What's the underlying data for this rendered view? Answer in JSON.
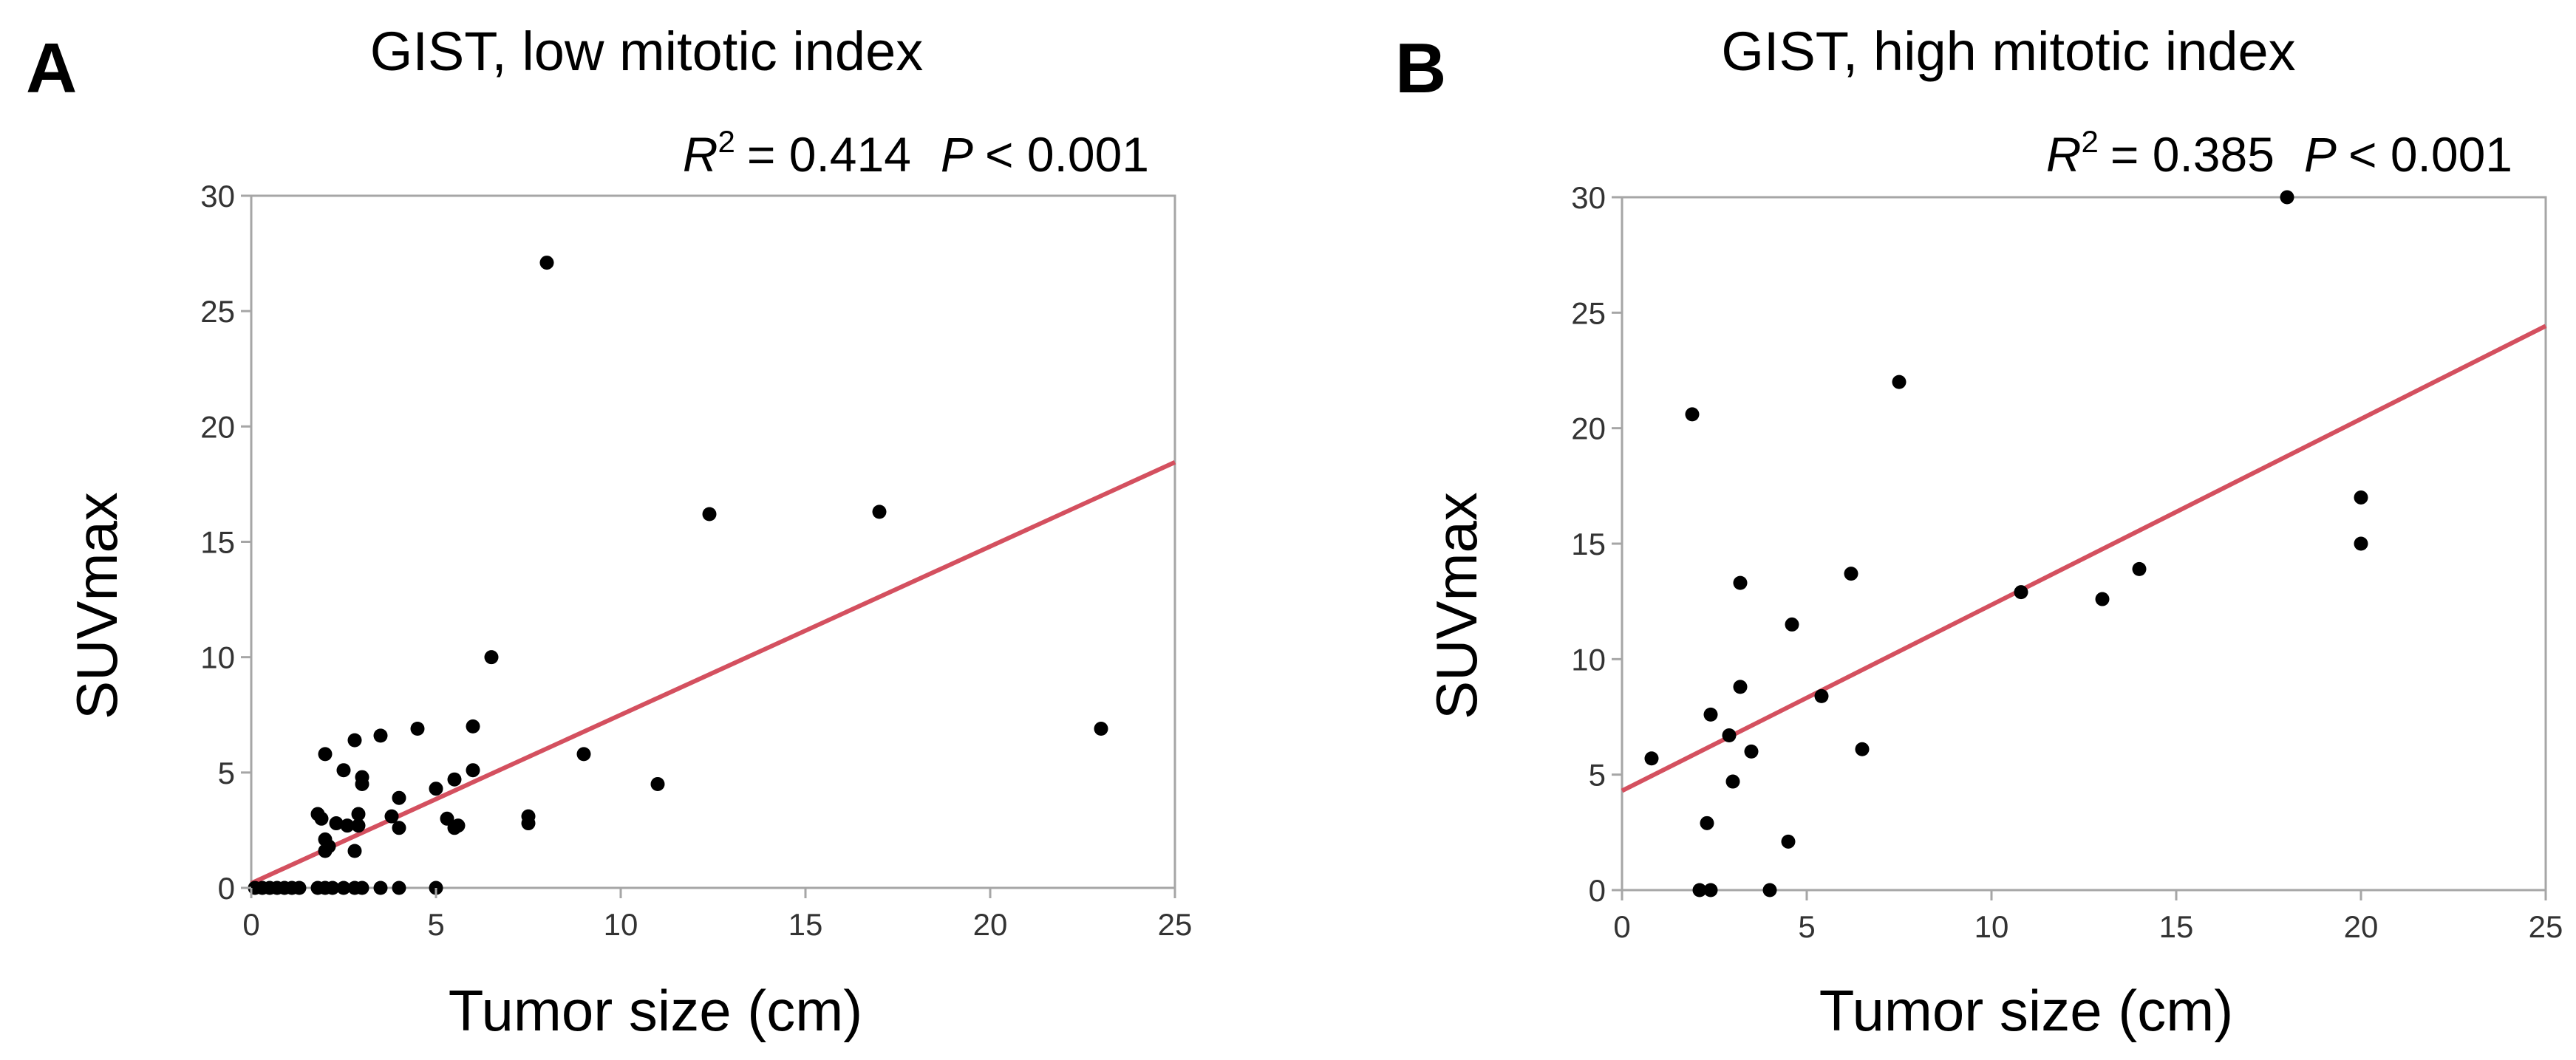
{
  "figure": {
    "colors": {
      "regression": "#d4505f",
      "points": "#000000",
      "axis": "#a6a6a6",
      "tick_text": "#333333"
    }
  },
  "chart_data": [
    {
      "type": "scatter",
      "panel_label": "A",
      "title": "GIST, low mitotic index",
      "stats": {
        "r2_symbol": "R",
        "r2_sup": "2",
        "r2_value": "= 0.414",
        "p_symbol": "P",
        "p_value": "< 0.001"
      },
      "xlabel": "Tumor size (cm)",
      "ylabel": "SUVmax",
      "xlim": [
        0,
        25
      ],
      "ylim": [
        0,
        30
      ],
      "xticks": [
        0,
        5,
        10,
        15,
        20,
        25
      ],
      "yticks": [
        0,
        5,
        10,
        15,
        20,
        25,
        30
      ],
      "grid": false,
      "regression": {
        "intercept": 0.2,
        "slope": 0.73
      },
      "points": [
        [
          8,
          27.1
        ],
        [
          12.4,
          16.2
        ],
        [
          17,
          16.3
        ],
        [
          6.5,
          10
        ],
        [
          23,
          6.9
        ],
        [
          9,
          5.8
        ],
        [
          11,
          4.5
        ],
        [
          6,
          7
        ],
        [
          4.5,
          6.9
        ],
        [
          3.5,
          6.6
        ],
        [
          2.8,
          6.4
        ],
        [
          2,
          5.8
        ],
        [
          2.5,
          5.1
        ],
        [
          3,
          4.8
        ],
        [
          3,
          4.5
        ],
        [
          6,
          5.1
        ],
        [
          5.5,
          4.7
        ],
        [
          5,
          4.3
        ],
        [
          4,
          3.9
        ],
        [
          3.8,
          3.1
        ],
        [
          5.3,
          3
        ],
        [
          5.6,
          2.7
        ],
        [
          5.5,
          2.6
        ],
        [
          7.5,
          3.1
        ],
        [
          7.5,
          2.8
        ],
        [
          1.8,
          3.2
        ],
        [
          1.9,
          3
        ],
        [
          2.3,
          2.8
        ],
        [
          2.6,
          2.7
        ],
        [
          2.9,
          3.2
        ],
        [
          2.9,
          2.7
        ],
        [
          4,
          2.6
        ],
        [
          2,
          2.1
        ],
        [
          2.1,
          1.8
        ],
        [
          2,
          1.6
        ],
        [
          2.8,
          1.6
        ],
        [
          0.1,
          0
        ],
        [
          0.3,
          0
        ],
        [
          0.5,
          0
        ],
        [
          0.7,
          0
        ],
        [
          0.9,
          0
        ],
        [
          1.1,
          0
        ],
        [
          1.3,
          0
        ],
        [
          1.8,
          0
        ],
        [
          2,
          0
        ],
        [
          2.2,
          0
        ],
        [
          2.5,
          0
        ],
        [
          2.8,
          0
        ],
        [
          3,
          0
        ],
        [
          3.5,
          0
        ],
        [
          4,
          0
        ],
        [
          5,
          0
        ]
      ]
    },
    {
      "type": "scatter",
      "panel_label": "B",
      "title": "GIST, high mitotic index",
      "stats": {
        "r2_symbol": "R",
        "r2_sup": "2",
        "r2_value": "= 0.385",
        "p_symbol": "P",
        "p_value": "< 0.001"
      },
      "xlabel": "Tumor size (cm)",
      "ylabel": "SUVmax",
      "xlim": [
        0,
        25
      ],
      "ylim": [
        0,
        30
      ],
      "xticks": [
        0,
        5,
        10,
        15,
        20,
        25
      ],
      "yticks": [
        0,
        5,
        10,
        15,
        20,
        25,
        30
      ],
      "grid": false,
      "regression": {
        "intercept": 4.3,
        "slope": 0.805
      },
      "points": [
        [
          18,
          30
        ],
        [
          7.5,
          22
        ],
        [
          1.9,
          20.6
        ],
        [
          20,
          17
        ],
        [
          20,
          15
        ],
        [
          14,
          13.9
        ],
        [
          6.2,
          13.7
        ],
        [
          3.2,
          13.3
        ],
        [
          10.8,
          12.9
        ],
        [
          13,
          12.6
        ],
        [
          4.6,
          11.5
        ],
        [
          3.2,
          8.8
        ],
        [
          5.4,
          8.4
        ],
        [
          2.4,
          7.6
        ],
        [
          2.9,
          6.7
        ],
        [
          3.5,
          6
        ],
        [
          6.5,
          6.1
        ],
        [
          0.8,
          5.7
        ],
        [
          3,
          4.7
        ],
        [
          2.3,
          2.9
        ],
        [
          4.5,
          2.1
        ],
        [
          2.1,
          0
        ],
        [
          2.4,
          0
        ],
        [
          4,
          0
        ]
      ]
    }
  ]
}
